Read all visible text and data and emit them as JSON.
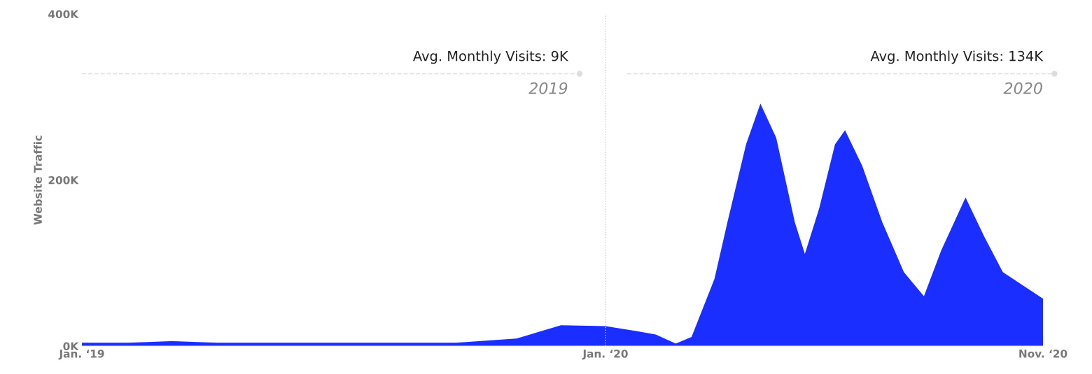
{
  "chart_data": {
    "type": "area",
    "ylabel": "Website Traffic",
    "color": "#1a2eff",
    "grid": false,
    "x": [
      "2019-01-01",
      "2019-02-03",
      "2019-03-04",
      "2019-04-05",
      "2019-05-27",
      "2019-07-18",
      "2019-09-19",
      "2019-10-31",
      "2019-12-01",
      "2020-01-01",
      "2020-01-23",
      "2020-02-05",
      "2020-02-19",
      "2020-03-01",
      "2020-03-17",
      "2020-03-26",
      "2020-04-08",
      "2020-04-18",
      "2020-04-29",
      "2020-05-12",
      "2020-05-19",
      "2020-05-29",
      "2020-06-09",
      "2020-06-16",
      "2020-06-28",
      "2020-07-12",
      "2020-07-27",
      "2020-08-10",
      "2020-08-22",
      "2020-09-08",
      "2020-09-21",
      "2020-10-04",
      "2020-11-01"
    ],
    "values": [
      4,
      4,
      6,
      4,
      4,
      4,
      4,
      9,
      25,
      24,
      18,
      14,
      3,
      11,
      81,
      149,
      243,
      292,
      251,
      149,
      111,
      166,
      243,
      260,
      217,
      149,
      89,
      60,
      115,
      179,
      132,
      89,
      57
    ],
    "xlim": [
      "2019-01-01",
      "2020-11-01"
    ],
    "ylim": [
      0,
      400
    ],
    "xticks": [
      {
        "value": "2019-01-01",
        "label": "Jan. ‘19"
      },
      {
        "value": "2020-01-01",
        "label": "Jan. ‘20"
      },
      {
        "value": "2020-11-01",
        "label": "Nov. ‘20"
      }
    ],
    "yticks": [
      {
        "value": 0,
        "label": "0K"
      },
      {
        "value": 200,
        "label": "200K"
      },
      {
        "value": 400,
        "label": "400K"
      }
    ],
    "ref_lines": [
      {
        "axis": "x",
        "value": "2020-01-01",
        "label": null,
        "color": "#cccccc",
        "line_style": "dotted"
      }
    ],
    "annotations": [
      "Avg. Monthly Visits: 9K",
      "2019",
      "Avg. Monthly Visits: 134K",
      "2020"
    ]
  }
}
